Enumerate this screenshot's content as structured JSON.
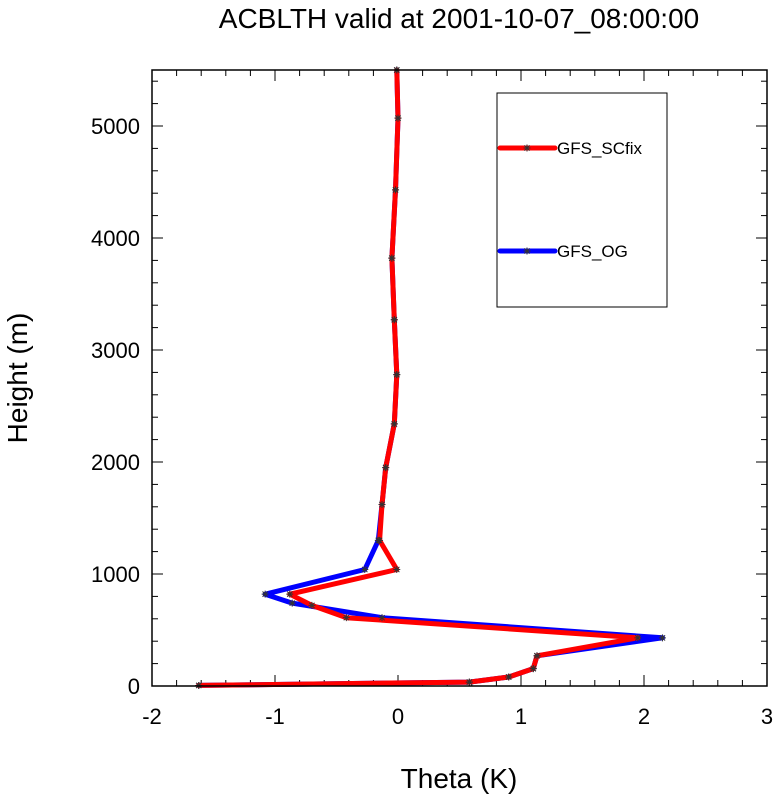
{
  "chart_data": {
    "type": "line",
    "title": "ACBLTH valid at 2001-10-07_08:00:00",
    "xlabel": "Theta (K)",
    "ylabel": "Height (m)",
    "xlim": [
      -2,
      3
    ],
    "ylim": [
      0,
      5500
    ],
    "xticks": [
      -2,
      -1,
      0,
      1,
      2,
      3
    ],
    "yticks": [
      0,
      1000,
      2000,
      3000,
      4000,
      5000
    ],
    "xtick_labels": [
      "-2",
      "-1",
      "0",
      "1",
      "2",
      "3"
    ],
    "ytick_labels": [
      "0",
      "1000",
      "2000",
      "3000",
      "4000",
      "5000"
    ],
    "grid": false,
    "legend_position": "top-right",
    "series": [
      {
        "name": "GFS_OG",
        "color": "#0000ff",
        "marker": "asterisk",
        "points": [
          [
            -1.62,
            5
          ],
          [
            0.58,
            35
          ],
          [
            0.9,
            80
          ],
          [
            1.1,
            155
          ],
          [
            1.13,
            270
          ],
          [
            2.15,
            430
          ],
          [
            -0.13,
            610
          ],
          [
            -0.86,
            740
          ],
          [
            -1.08,
            820
          ],
          [
            -0.27,
            1040
          ],
          [
            -0.16,
            1300
          ],
          [
            -0.13,
            1620
          ],
          [
            -0.1,
            1950
          ],
          [
            -0.03,
            2340
          ],
          [
            -0.01,
            2780
          ],
          [
            -0.03,
            3270
          ],
          [
            -0.05,
            3820
          ],
          [
            -0.02,
            4430
          ],
          [
            0.0,
            5070
          ],
          [
            -0.01,
            5500
          ]
        ]
      },
      {
        "name": "GFS_SCfix",
        "color": "#ff0000",
        "marker": "asterisk",
        "points": [
          [
            -1.62,
            5
          ],
          [
            0.58,
            35
          ],
          [
            0.9,
            80
          ],
          [
            1.1,
            155
          ],
          [
            1.13,
            270
          ],
          [
            1.95,
            430
          ],
          [
            -0.42,
            610
          ],
          [
            -0.7,
            720
          ],
          [
            -0.88,
            820
          ],
          [
            -0.01,
            1040
          ],
          [
            -0.15,
            1300
          ],
          [
            -0.13,
            1620
          ],
          [
            -0.1,
            1950
          ],
          [
            -0.03,
            2340
          ],
          [
            -0.01,
            2780
          ],
          [
            -0.03,
            3270
          ],
          [
            -0.05,
            3820
          ],
          [
            -0.02,
            4430
          ],
          [
            0.0,
            5070
          ],
          [
            -0.01,
            5500
          ]
        ]
      }
    ],
    "legend": [
      {
        "name": "GFS_SCfix",
        "color": "#ff0000"
      },
      {
        "name": "GFS_OG",
        "color": "#0000ff"
      }
    ]
  }
}
